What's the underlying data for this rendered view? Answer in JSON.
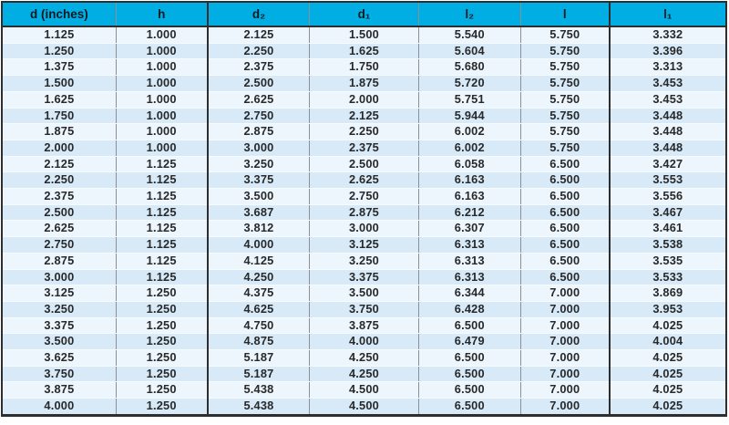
{
  "theme": {
    "header_bg": "#00AEE4",
    "header_text": "#151a20",
    "row_odd_bg": "#EDF6FC",
    "row_even_bg": "#D8EAF7",
    "cell_text": "#27292b",
    "border_dark": "#2e2e2e",
    "border_light": "#8a9096",
    "row_divider": "#f6fbfe"
  },
  "chart_data": {
    "type": "table",
    "title": "",
    "columns": [
      "d (inches)",
      "h",
      "d₂",
      "d₁",
      "l₂",
      "l",
      "l₁"
    ],
    "rows": [
      [
        "1.125",
        "1.000",
        "2.125",
        "1.500",
        "5.540",
        "5.750",
        "3.332"
      ],
      [
        "1.250",
        "1.000",
        "2.250",
        "1.625",
        "5.604",
        "5.750",
        "3.396"
      ],
      [
        "1.375",
        "1.000",
        "2.375",
        "1.750",
        "5.680",
        "5.750",
        "3.313"
      ],
      [
        "1.500",
        "1.000",
        "2.500",
        "1.875",
        "5.720",
        "5.750",
        "3.453"
      ],
      [
        "1.625",
        "1.000",
        "2.625",
        "2.000",
        "5.751",
        "5.750",
        "3.453"
      ],
      [
        "1.750",
        "1.000",
        "2.750",
        "2.125",
        "5.944",
        "5.750",
        "3.448"
      ],
      [
        "1.875",
        "1.000",
        "2.875",
        "2.250",
        "6.002",
        "5.750",
        "3.448"
      ],
      [
        "2.000",
        "1.000",
        "3.000",
        "2.375",
        "6.002",
        "5.750",
        "3.448"
      ],
      [
        "2.125",
        "1.125",
        "3.250",
        "2.500",
        "6.058",
        "6.500",
        "3.427"
      ],
      [
        "2.250",
        "1.125",
        "3.375",
        "2.625",
        "6.163",
        "6.500",
        "3.553"
      ],
      [
        "2.375",
        "1.125",
        "3.500",
        "2.750",
        "6.163",
        "6.500",
        "3.556"
      ],
      [
        "2.500",
        "1.125",
        "3.687",
        "2.875",
        "6.212",
        "6.500",
        "3.467"
      ],
      [
        "2.625",
        "1.125",
        "3.812",
        "3.000",
        "6.307",
        "6.500",
        "3.461"
      ],
      [
        "2.750",
        "1.125",
        "4.000",
        "3.125",
        "6.313",
        "6.500",
        "3.538"
      ],
      [
        "2.875",
        "1.125",
        "4.125",
        "3.250",
        "6.313",
        "6.500",
        "3.535"
      ],
      [
        "3.000",
        "1.125",
        "4.250",
        "3.375",
        "6.313",
        "6.500",
        "3.533"
      ],
      [
        "3.125",
        "1.250",
        "4.375",
        "3.500",
        "6.344",
        "7.000",
        "3.869"
      ],
      [
        "3.250",
        "1.250",
        "4.625",
        "3.750",
        "6.428",
        "7.000",
        "3.953"
      ],
      [
        "3.375",
        "1.250",
        "4.750",
        "3.875",
        "6.500",
        "7.000",
        "4.025"
      ],
      [
        "3.500",
        "1.250",
        "4.875",
        "4.000",
        "6.479",
        "7.000",
        "4.004"
      ],
      [
        "3.625",
        "1.250",
        "5.187",
        "4.250",
        "6.500",
        "7.000",
        "4.025"
      ],
      [
        "3.750",
        "1.250",
        "5.187",
        "4.250",
        "6.500",
        "7.000",
        "4.025"
      ],
      [
        "3.875",
        "1.250",
        "5.438",
        "4.500",
        "6.500",
        "7.000",
        "4.025"
      ],
      [
        "4.000",
        "1.250",
        "5.438",
        "4.500",
        "6.500",
        "7.000",
        "4.025"
      ]
    ]
  }
}
